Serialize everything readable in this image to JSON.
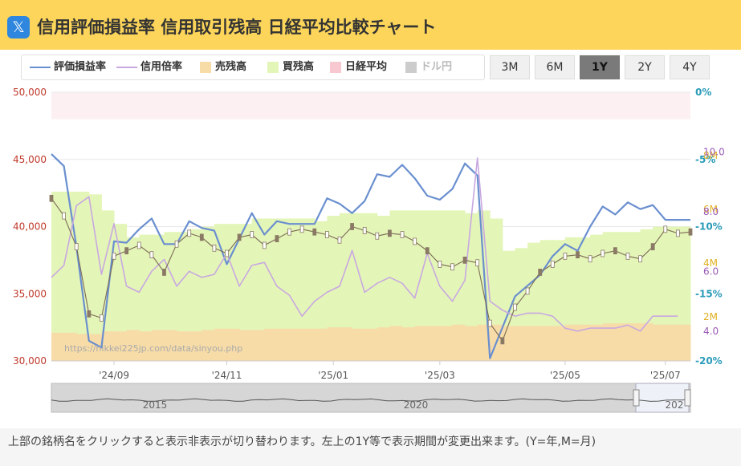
{
  "header": {
    "logo_glyph": "𝕏",
    "title": "信用評価損益率 信用取引残高 日経平均比較チャート"
  },
  "legend": [
    {
      "label": "評価損益率",
      "color": "#6a8fcf",
      "kind": "line"
    },
    {
      "label": "信用倍率",
      "color": "#c8a8e0",
      "kind": "line"
    },
    {
      "label": "売残高",
      "color": "#f7dca8",
      "kind": "box"
    },
    {
      "label": "買残高",
      "color": "#e4f5b8",
      "kind": "box"
    },
    {
      "label": "日経平均",
      "color": "#f8c8d0",
      "kind": "box"
    },
    {
      "label": "ドル円",
      "color": "#cccccc",
      "kind": "box",
      "muted": true
    }
  ],
  "range_buttons": [
    {
      "label": "3M",
      "active": false
    },
    {
      "label": "6M",
      "active": false
    },
    {
      "label": "1Y",
      "active": true
    },
    {
      "label": "2Y",
      "active": false
    },
    {
      "label": "4Y",
      "active": false
    }
  ],
  "watermark": "https://nikkei225jp.com/data/sinyou.php",
  "footer": "上部の銘柄名をクリックすると表示非表示が切り替わります。左上の1Y等で表示期間が変更出来ます。(Y=年,M=月)",
  "navigator": {
    "labels": [
      "2015",
      "2020",
      "202"
    ]
  },
  "chart_data": {
    "type": "line",
    "x_tick_labels": [
      "'24/09",
      "'24/11",
      "'25/01",
      "'25/03",
      "'25/05",
      "'25/07"
    ],
    "x_tick_weeks": [
      5,
      14,
      22.5,
      31,
      41,
      49
    ],
    "axes": {
      "nikkei": {
        "ticks": [
          "50,000",
          "45,000",
          "40,000",
          "35,000",
          "30,000"
        ],
        "ylim": [
          30000,
          50000
        ],
        "color": "#c0392b"
      },
      "rate": {
        "ticks": [
          "0%",
          "-5%",
          "-10%",
          "-15%",
          "-20%"
        ],
        "ylim": [
          -20,
          0
        ],
        "color": "#2a9bb8"
      },
      "balance": {
        "ticks": [
          "8M",
          "6M",
          "4M",
          "2M"
        ],
        "ylim": [
          0,
          10
        ],
        "color": "#e0b020"
      },
      "ratio": {
        "ticks": [
          "10.0",
          "8.0",
          "6.0",
          "4.0"
        ],
        "ylim": [
          3,
          12
        ],
        "color": "#9b59b6"
      }
    },
    "series": [
      {
        "name": "評価損益率",
        "axis": "rate",
        "color": "#6a8fcf",
        "width": 2.2,
        "x": [
          0,
          1,
          2,
          3,
          4,
          5,
          6,
          7,
          8,
          9,
          10,
          11,
          12,
          13,
          14,
          15,
          16,
          17,
          18,
          19,
          20,
          21,
          22,
          23,
          24,
          25,
          26,
          27,
          28,
          29,
          30,
          31,
          32,
          33,
          34,
          35,
          36,
          37,
          38,
          39,
          40,
          41,
          42,
          43,
          44,
          45,
          46,
          47,
          48,
          49,
          50,
          51
        ],
        "values": [
          -4.6,
          -5.5,
          -11.5,
          -18.5,
          -19,
          -11.1,
          -11.2,
          -10.2,
          -9.4,
          -11.3,
          -11.3,
          -9.6,
          -10.1,
          -10.3,
          -12.8,
          -10.9,
          -9,
          -10.6,
          -9.6,
          -9.8,
          -9.8,
          -9.8,
          -7.9,
          -8.3,
          -9,
          -8.1,
          -6.1,
          -6.3,
          -5.4,
          -6.4,
          -7.7,
          -8,
          -7.2,
          -5.3,
          -6.2,
          -19.8,
          -17.5,
          -15.2,
          -14.4,
          -13.6,
          -12.2,
          -11.3,
          -11.8,
          -10,
          -8.5,
          -9.1,
          -8.2,
          -8.7,
          -8.4,
          -9.5,
          -9.5,
          -9.5
        ]
      },
      {
        "name": "信用倍率",
        "axis": "ratio",
        "color": "#c8a8e0",
        "width": 1.6,
        "x": [
          0,
          1,
          2,
          3,
          4,
          5,
          6,
          7,
          8,
          9,
          10,
          11,
          12,
          13,
          14,
          15,
          16,
          17,
          18,
          19,
          20,
          21,
          22,
          23,
          24,
          25,
          26,
          27,
          28,
          29,
          30,
          31,
          32,
          33,
          34,
          35,
          36,
          37,
          38,
          39,
          40,
          41,
          42,
          43,
          44,
          45,
          46,
          47,
          48,
          49,
          50
        ],
        "values": [
          5.8,
          6.2,
          8.2,
          8.5,
          5.9,
          7.6,
          5.5,
          5.3,
          6.0,
          6.4,
          5.5,
          6.0,
          5.8,
          5.9,
          6.6,
          5.5,
          6.2,
          6.3,
          5.5,
          5.2,
          4.5,
          5.0,
          5.3,
          5.5,
          6.7,
          5.3,
          5.6,
          5.8,
          5.6,
          5.1,
          6.6,
          5.5,
          5.0,
          5.7,
          9.8,
          5.0,
          4.7,
          4.5,
          4.6,
          4.6,
          4.5,
          4.1,
          4.0,
          4.1,
          4.1,
          4.1,
          4.2,
          4.0,
          4.5,
          4.5,
          4.5
        ]
      },
      {
        "name": "日経平均",
        "axis": "nikkei",
        "color": "#7a6a55",
        "width": 1.1,
        "x": [
          0,
          1,
          2,
          3,
          4,
          5,
          6,
          7,
          8,
          9,
          10,
          11,
          12,
          13,
          14,
          15,
          16,
          17,
          18,
          19,
          20,
          21,
          22,
          23,
          24,
          25,
          26,
          27,
          28,
          29,
          30,
          31,
          32,
          33,
          34,
          35,
          36,
          37,
          38,
          39,
          40,
          41,
          42,
          43,
          44,
          45,
          46,
          47,
          48,
          49,
          50,
          51
        ],
        "values": [
          42100,
          40800,
          38500,
          33500,
          33200,
          37800,
          38200,
          38600,
          37900,
          36600,
          38700,
          39500,
          39200,
          38400,
          38000,
          39200,
          39400,
          38600,
          39100,
          39600,
          39800,
          39600,
          39400,
          39000,
          40000,
          39700,
          39300,
          39500,
          39400,
          38900,
          38200,
          37200,
          37000,
          37500,
          37300,
          32800,
          31500,
          34000,
          35200,
          36600,
          37200,
          37800,
          37900,
          37600,
          38000,
          38200,
          37800,
          37600,
          38500,
          39800,
          39500,
          39600
        ]
      }
    ],
    "bars": [
      {
        "name": "買残高",
        "axis": "balance",
        "color": "#e4f5b8",
        "values": [
          6.3,
          6.3,
          6.3,
          6.2,
          5.6,
          5.1,
          4.6,
          4.7,
          4.7,
          4.8,
          4.8,
          4.9,
          5.0,
          5.1,
          5.1,
          5.1,
          5.3,
          5.3,
          5.3,
          5.3,
          5.3,
          5.2,
          5.4,
          5.5,
          5.5,
          5.5,
          5.4,
          5.6,
          5.6,
          5.6,
          5.6,
          5.6,
          5.6,
          5.5,
          5.6,
          5.3,
          4.1,
          4.2,
          4.4,
          4.5,
          4.5,
          4.6,
          4.6,
          4.7,
          4.8,
          4.8,
          4.8,
          4.9,
          5.0,
          5.0,
          5.0
        ]
      },
      {
        "name": "売残高",
        "axis": "balance",
        "color": "#f7dca8",
        "values": [
          1.05,
          1.05,
          1.0,
          1.0,
          1.1,
          1.1,
          1.15,
          1.1,
          1.15,
          1.15,
          1.1,
          1.1,
          1.15,
          1.2,
          1.2,
          1.15,
          1.15,
          1.2,
          1.2,
          1.2,
          1.2,
          1.2,
          1.25,
          1.25,
          1.2,
          1.2,
          1.25,
          1.3,
          1.25,
          1.3,
          1.3,
          1.3,
          1.35,
          1.3,
          1.35,
          1.35,
          1.3,
          1.3,
          1.3,
          1.3,
          1.3,
          1.35,
          1.35,
          1.35,
          1.4,
          1.4,
          1.4,
          1.4,
          1.35,
          1.35,
          1.35
        ]
      }
    ]
  }
}
